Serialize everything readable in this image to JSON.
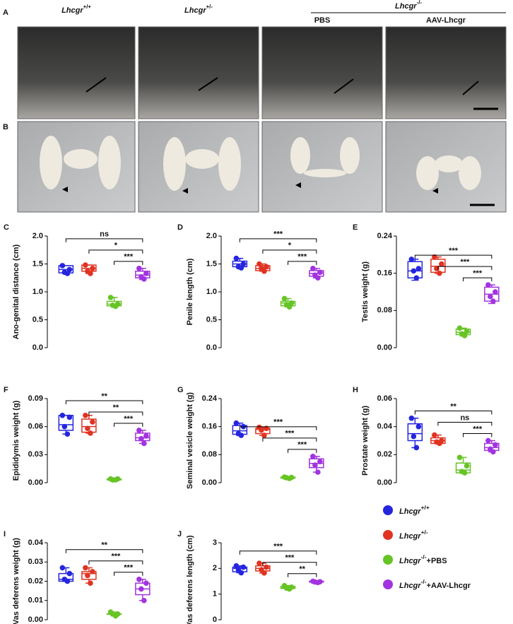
{
  "photo_panel_labels": [
    "A",
    "B"
  ],
  "photo_columns": [
    {
      "gene": "Lhcgr",
      "genotype": "+/+"
    },
    {
      "gene": "Lhcgr",
      "genotype": "+/-"
    }
  ],
  "photo_group": {
    "gene": "Lhcgr",
    "genotype": "-/-",
    "columns": [
      "PBS",
      "AAV-Lhcgr"
    ]
  },
  "legend": [
    {
      "gene": "Lhcgr",
      "genotype": "+/+",
      "color": "#2525e0"
    },
    {
      "gene": "Lhcgr",
      "genotype": "+/-",
      "color": "#e03322"
    },
    {
      "gene": "Lhcgr",
      "genotype": "-/-",
      "treatment": "+PBS",
      "color": "#66c425"
    },
    {
      "gene": "Lhcgr",
      "genotype": "-/-",
      "treatment": "+AAV-Lhcgr",
      "color": "#a233e0"
    }
  ],
  "chart_data": [
    {
      "type": "box",
      "panel": "C",
      "y_label": "Ano-genital distance (cm)",
      "ylim": [
        0,
        2
      ],
      "yticks": [
        {
          "value": 0,
          "label": "0.0"
        },
        {
          "value": 0.5,
          "label": "0.5"
        },
        {
          "value": 1,
          "label": "1.0"
        },
        {
          "value": 1.5,
          "label": "1.5"
        },
        {
          "value": 2,
          "label": "2.0"
        }
      ],
      "boxes": [
        {
          "min": 1.33,
          "q1": 1.34,
          "median": 1.4,
          "q3": 1.47,
          "max": 1.47,
          "points": [
            1.47,
            1.4,
            1.35,
            1.33
          ]
        },
        {
          "min": 1.33,
          "q1": 1.37,
          "median": 1.42,
          "q3": 1.48,
          "max": 1.48,
          "points": [
            1.48,
            1.42,
            1.37,
            1.33
          ]
        },
        {
          "min": 0.74,
          "q1": 0.75,
          "median": 0.78,
          "q3": 0.83,
          "max": 0.9,
          "points": [
            0.9,
            0.78,
            0.76,
            0.74
          ]
        },
        {
          "min": 1.22,
          "q1": 1.25,
          "median": 1.3,
          "q3": 1.37,
          "max": 1.42,
          "points": [
            1.42,
            1.33,
            1.27,
            1.23
          ]
        }
      ],
      "significance": [
        "ns",
        "*",
        "***"
      ]
    },
    {
      "type": "box",
      "panel": "D",
      "y_label": "Penile length (cm)",
      "ylim": [
        0,
        2
      ],
      "yticks": [
        {
          "value": 0,
          "label": "0.0"
        },
        {
          "value": 0.5,
          "label": "0.5"
        },
        {
          "value": 1,
          "label": "1.0"
        },
        {
          "value": 1.5,
          "label": "1.5"
        },
        {
          "value": 2,
          "label": "2.0"
        }
      ],
      "boxes": [
        {
          "min": 1.43,
          "q1": 1.45,
          "median": 1.5,
          "q3": 1.55,
          "max": 1.6,
          "points": [
            1.6,
            1.5,
            1.45,
            1.43
          ]
        },
        {
          "min": 1.37,
          "q1": 1.38,
          "median": 1.42,
          "q3": 1.47,
          "max": 1.5,
          "points": [
            1.5,
            1.45,
            1.42,
            1.37
          ]
        },
        {
          "min": 0.73,
          "q1": 0.75,
          "median": 0.8,
          "q3": 0.83,
          "max": 0.88,
          "points": [
            0.88,
            0.8,
            0.77,
            0.73
          ]
        },
        {
          "min": 1.25,
          "q1": 1.28,
          "median": 1.33,
          "q3": 1.38,
          "max": 1.42,
          "points": [
            1.42,
            1.35,
            1.3,
            1.25
          ]
        }
      ],
      "significance": [
        "***",
        "*",
        "***"
      ]
    },
    {
      "type": "box",
      "panel": "E",
      "y_label": "Testis weight (g)",
      "ylim": [
        0,
        0.24
      ],
      "yticks": [
        {
          "value": 0,
          "label": "0.00"
        },
        {
          "value": 0.08,
          "label": "0.08"
        },
        {
          "value": 0.16,
          "label": "0.16"
        },
        {
          "value": 0.24,
          "label": "0.24"
        }
      ],
      "boxes": [
        {
          "min": 0.145,
          "q1": 0.15,
          "median": 0.165,
          "q3": 0.185,
          "max": 0.19,
          "points": [
            0.19,
            0.17,
            0.165,
            0.15
          ]
        },
        {
          "min": 0.16,
          "q1": 0.162,
          "median": 0.175,
          "q3": 0.19,
          "max": 0.195,
          "points": [
            0.195,
            0.18,
            0.17,
            0.16
          ]
        },
        {
          "min": 0.025,
          "q1": 0.028,
          "median": 0.033,
          "q3": 0.04,
          "max": 0.042,
          "points": [
            0.042,
            0.035,
            0.03,
            0.026
          ]
        },
        {
          "min": 0.095,
          "q1": 0.1,
          "median": 0.115,
          "q3": 0.13,
          "max": 0.135,
          "points": [
            0.135,
            0.12,
            0.11,
            0.1
          ]
        }
      ],
      "significance": [
        "***",
        "***",
        "***"
      ]
    },
    {
      "type": "box",
      "panel": "F",
      "y_label": "Epididymis weight (g)",
      "ylim": [
        0,
        0.09
      ],
      "yticks": [
        {
          "value": 0,
          "label": "0.00"
        },
        {
          "value": 0.03,
          "label": "0.03"
        },
        {
          "value": 0.06,
          "label": "0.06"
        },
        {
          "value": 0.09,
          "label": "0.09"
        }
      ],
      "boxes": [
        {
          "min": 0.052,
          "q1": 0.056,
          "median": 0.062,
          "q3": 0.072,
          "max": 0.072,
          "points": [
            0.072,
            0.07,
            0.06,
            0.052
          ]
        },
        {
          "min": 0.053,
          "q1": 0.054,
          "median": 0.06,
          "q3": 0.068,
          "max": 0.072,
          "points": [
            0.072,
            0.065,
            0.058,
            0.053
          ]
        },
        {
          "min": 0.003,
          "q1": 0.003,
          "median": 0.004,
          "q3": 0.004,
          "max": 0.004,
          "points": [
            0.004,
            0.004,
            0.003,
            0.003
          ]
        },
        {
          "min": 0.042,
          "q1": 0.045,
          "median": 0.048,
          "q3": 0.053,
          "max": 0.056,
          "points": [
            0.056,
            0.05,
            0.047,
            0.042
          ]
        }
      ],
      "significance": [
        "**",
        "**",
        "***"
      ]
    },
    {
      "type": "box",
      "panel": "G",
      "y_label": "Seminal vesicle weight (g)",
      "ylim": [
        0,
        0.24
      ],
      "yticks": [
        {
          "value": 0,
          "label": "0.00"
        },
        {
          "value": 0.08,
          "label": "0.08"
        },
        {
          "value": 0.16,
          "label": "0.16"
        },
        {
          "value": 0.24,
          "label": "0.24"
        }
      ],
      "boxes": [
        {
          "min": 0.135,
          "q1": 0.138,
          "median": 0.148,
          "q3": 0.163,
          "max": 0.17,
          "points": [
            0.17,
            0.16,
            0.14,
            0.135
          ]
        },
        {
          "min": 0.135,
          "q1": 0.14,
          "median": 0.152,
          "q3": 0.155,
          "max": 0.158,
          "points": [
            0.158,
            0.155,
            0.15,
            0.135
          ]
        },
        {
          "min": 0.012,
          "q1": 0.013,
          "median": 0.015,
          "q3": 0.016,
          "max": 0.016,
          "points": [
            0.016,
            0.015,
            0.014,
            0.012
          ]
        },
        {
          "min": 0.03,
          "q1": 0.043,
          "median": 0.055,
          "q3": 0.068,
          "max": 0.075,
          "points": [
            0.075,
            0.06,
            0.05,
            0.03
          ]
        }
      ],
      "significance": [
        "***",
        "***",
        "***"
      ]
    },
    {
      "type": "box",
      "panel": "H",
      "y_label": "Prostate weight (g)",
      "ylim": [
        0,
        0.06
      ],
      "yticks": [
        {
          "value": 0,
          "label": "0.00"
        },
        {
          "value": 0.02,
          "label": "0.02"
        },
        {
          "value": 0.04,
          "label": "0.04"
        },
        {
          "value": 0.06,
          "label": "0.06"
        }
      ],
      "boxes": [
        {
          "min": 0.025,
          "q1": 0.03,
          "median": 0.035,
          "q3": 0.042,
          "max": 0.046,
          "points": [
            0.046,
            0.04,
            0.033,
            0.025
          ]
        },
        {
          "min": 0.028,
          "q1": 0.028,
          "median": 0.03,
          "q3": 0.032,
          "max": 0.034,
          "points": [
            0.034,
            0.03,
            0.029,
            0.028
          ]
        },
        {
          "min": 0.007,
          "q1": 0.007,
          "median": 0.009,
          "q3": 0.014,
          "max": 0.018,
          "points": [
            0.018,
            0.012,
            0.008,
            0.007
          ]
        },
        {
          "min": 0.022,
          "q1": 0.023,
          "median": 0.025,
          "q3": 0.028,
          "max": 0.03,
          "points": [
            0.03,
            0.027,
            0.024,
            0.022
          ]
        }
      ],
      "significance": [
        "**",
        "ns",
        "***"
      ]
    },
    {
      "type": "box",
      "panel": "I",
      "y_label": "Vas deferens weight (g)",
      "ylim": [
        0,
        0.04
      ],
      "yticks": [
        {
          "value": 0,
          "label": "0.00"
        },
        {
          "value": 0.01,
          "label": "0.01"
        },
        {
          "value": 0.02,
          "label": "0.02"
        },
        {
          "value": 0.03,
          "label": "0.03"
        },
        {
          "value": 0.04,
          "label": "0.04"
        }
      ],
      "boxes": [
        {
          "min": 0.02,
          "q1": 0.02,
          "median": 0.021,
          "q3": 0.024,
          "max": 0.027,
          "points": [
            0.027,
            0.024,
            0.021,
            0.02
          ]
        },
        {
          "min": 0.019,
          "q1": 0.021,
          "median": 0.024,
          "q3": 0.025,
          "max": 0.027,
          "points": [
            0.027,
            0.025,
            0.023,
            0.019
          ]
        },
        {
          "min": 0.002,
          "q1": 0.003,
          "median": 0.003,
          "q3": 0.003,
          "max": 0.004,
          "points": [
            0.004,
            0.003,
            0.003,
            0.002
          ]
        },
        {
          "min": 0.01,
          "q1": 0.013,
          "median": 0.016,
          "q3": 0.019,
          "max": 0.021,
          "points": [
            0.021,
            0.019,
            0.016,
            0.01
          ]
        }
      ],
      "significance": [
        "**",
        "***",
        "***"
      ]
    },
    {
      "type": "box",
      "panel": "J",
      "y_label": "Vas deferens length (cm)",
      "ylim": [
        0,
        3
      ],
      "yticks": [
        0,
        1,
        2,
        3
      ],
      "boxes": [
        {
          "min": 1.83,
          "q1": 1.87,
          "median": 2.0,
          "q3": 2.05,
          "max": 2.1,
          "points": [
            2.1,
            2.05,
            1.95,
            1.83
          ]
        },
        {
          "min": 1.82,
          "q1": 1.9,
          "median": 2.0,
          "q3": 2.1,
          "max": 2.2,
          "points": [
            2.2,
            2.05,
            1.95,
            1.82
          ]
        },
        {
          "min": 1.2,
          "q1": 1.22,
          "median": 1.25,
          "q3": 1.3,
          "max": 1.33,
          "points": [
            1.33,
            1.27,
            1.23,
            1.2
          ]
        },
        {
          "min": 1.45,
          "q1": 1.47,
          "median": 1.48,
          "q3": 1.5,
          "max": 1.52,
          "points": [
            1.5,
            1.48,
            1.47,
            1.45
          ]
        }
      ],
      "significance": [
        "***",
        "***",
        "**"
      ]
    }
  ]
}
